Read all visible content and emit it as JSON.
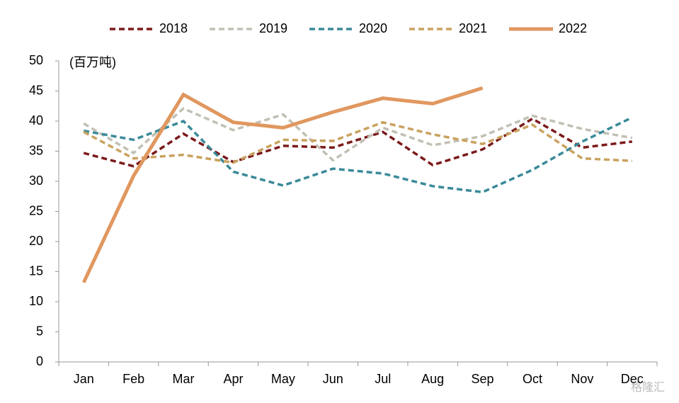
{
  "chart_data": {
    "type": "line",
    "unit_label": "(百万吨)",
    "watermark": "格隆汇",
    "categories": [
      "Jan",
      "Feb",
      "Mar",
      "Apr",
      "May",
      "Jun",
      "Jul",
      "Aug",
      "Sep",
      "Oct",
      "Nov",
      "Dec"
    ],
    "series": [
      {
        "name": "2018",
        "color": "#7b1a1a",
        "style": "dashed",
        "values": [
          34.7,
          32.5,
          37.9,
          33.2,
          35.9,
          35.6,
          38.2,
          32.7,
          35.3,
          40.4,
          35.6,
          36.6
        ]
      },
      {
        "name": "2019",
        "color": "#c2bfb4",
        "style": "dashed",
        "values": [
          39.6,
          34.7,
          42.1,
          38.5,
          41.1,
          33.5,
          38.9,
          36.0,
          37.5,
          40.9,
          38.7,
          37.2
        ]
      },
      {
        "name": "2020",
        "color": "#3a8a99",
        "style": "dashed",
        "values": [
          38.4,
          36.9,
          40.0,
          31.6,
          29.3,
          32.1,
          31.3,
          29.2,
          28.2,
          31.9,
          36.6,
          40.6
        ]
      },
      {
        "name": "2021",
        "color": "#c9a25e",
        "style": "dashed",
        "values": [
          38.2,
          33.8,
          34.4,
          33.1,
          36.9,
          36.7,
          39.8,
          37.8,
          36.2,
          39.4,
          33.8,
          33.4
        ]
      },
      {
        "name": "2022",
        "color": "#e0975f",
        "style": "solid",
        "values": [
          13.2,
          30.9,
          44.4,
          39.8,
          38.9,
          41.5,
          43.8,
          42.9,
          45.5,
          null,
          null,
          null
        ]
      }
    ],
    "ylim": [
      0,
      50
    ],
    "yticks": [
      0,
      5,
      10,
      15,
      20,
      25,
      30,
      35,
      40,
      45,
      50
    ],
    "grid": false,
    "legend": "top"
  }
}
